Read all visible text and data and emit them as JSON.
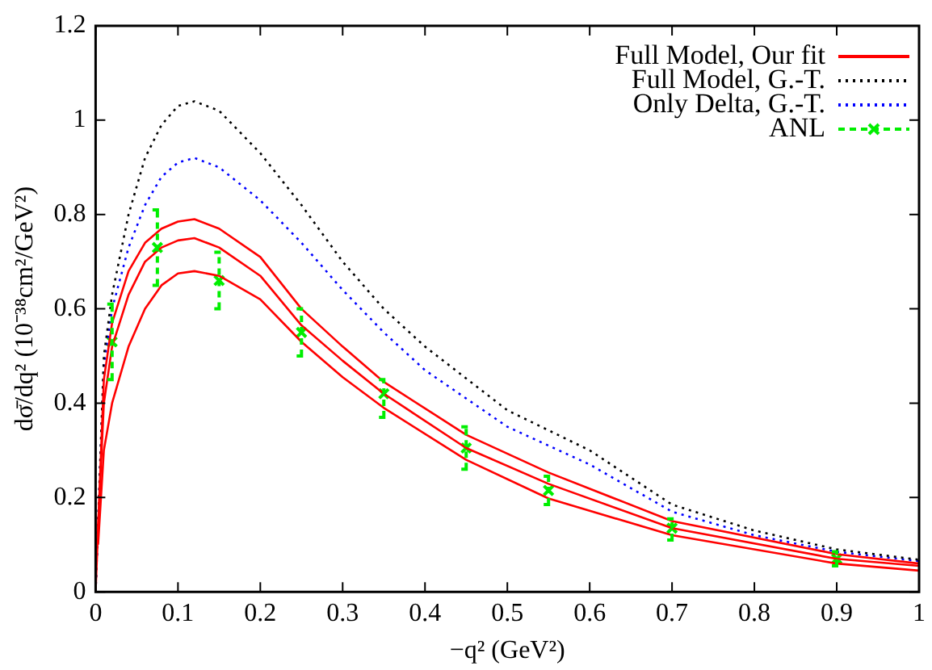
{
  "chart_data": {
    "type": "line",
    "xlabel": "−q² (GeV²)",
    "ylabel": "dσ̄/dq² (10⁻³⁸cm²/GeV²)",
    "xlim": [
      0,
      1
    ],
    "xticks": [
      0,
      0.1,
      0.2,
      0.3,
      0.4,
      0.5,
      0.6,
      0.7,
      0.8,
      0.9,
      1
    ],
    "ylim": [
      0,
      1.2
    ],
    "yticks": [
      0,
      0.2,
      0.4,
      0.6,
      0.8,
      1,
      1.2
    ],
    "grid": false,
    "legend": "top right",
    "series": [
      {
        "name": "Full Model, Our fit",
        "color": "#ff0000",
        "line_style": "solid",
        "marker": "none",
        "x": [
          0,
          0.01,
          0.02,
          0.04,
          0.06,
          0.08,
          0.1,
          0.12,
          0.15,
          0.2,
          0.25,
          0.3,
          0.35,
          0.45,
          0.55,
          0.7,
          0.9,
          1
        ],
        "values": [
          0,
          0.45,
          0.57,
          0.68,
          0.74,
          0.77,
          0.785,
          0.79,
          0.77,
          0.71,
          0.6,
          0.52,
          0.445,
          0.333,
          0.253,
          0.15,
          0.08,
          0.06
        ]
      },
      {
        "color": "#ff0000",
        "line_style": "solid",
        "marker": "none",
        "x": [
          0.002,
          0.01,
          0.02,
          0.04,
          0.06,
          0.08,
          0.1,
          0.12,
          0.15,
          0.2,
          0.25,
          0.3,
          0.35,
          0.45,
          0.55,
          0.7,
          0.9,
          1
        ],
        "values": [
          0.1,
          0.4,
          0.52,
          0.63,
          0.7,
          0.73,
          0.745,
          0.75,
          0.73,
          0.67,
          0.565,
          0.49,
          0.42,
          0.305,
          0.229,
          0.135,
          0.07,
          0.055
        ]
      },
      {
        "color": "#ff0000",
        "line_style": "solid",
        "marker": "none",
        "x": [
          0.003,
          0.01,
          0.02,
          0.04,
          0.06,
          0.08,
          0.1,
          0.12,
          0.15,
          0.2,
          0.25,
          0.3,
          0.35,
          0.45,
          0.55,
          0.7,
          0.9,
          1
        ],
        "values": [
          0.1,
          0.3,
          0.4,
          0.52,
          0.6,
          0.65,
          0.675,
          0.68,
          0.67,
          0.62,
          0.53,
          0.455,
          0.39,
          0.28,
          0.198,
          0.12,
          0.06,
          0.045
        ]
      },
      {
        "name": "Full Model, G.-T.",
        "color": "#000000",
        "line_style": "dotted",
        "marker": "none",
        "x": [
          0,
          0.01,
          0.02,
          0.04,
          0.06,
          0.08,
          0.1,
          0.12,
          0.15,
          0.2,
          0.25,
          0.3,
          0.35,
          0.4,
          0.5,
          0.6,
          0.7,
          0.8,
          0.9,
          1
        ],
        "values": [
          0,
          0.5,
          0.63,
          0.8,
          0.92,
          0.99,
          1.03,
          1.04,
          1.02,
          0.93,
          0.82,
          0.7,
          0.6,
          0.52,
          0.385,
          0.3,
          0.185,
          0.13,
          0.09,
          0.068
        ]
      },
      {
        "name": "Only Delta, G.-T.",
        "color": "#0000ff",
        "line_style": "dotted",
        "marker": "none",
        "x": [
          0,
          0.01,
          0.02,
          0.04,
          0.06,
          0.08,
          0.1,
          0.12,
          0.15,
          0.2,
          0.25,
          0.3,
          0.35,
          0.4,
          0.5,
          0.6,
          0.7,
          0.8,
          0.9,
          1
        ],
        "values": [
          0,
          0.48,
          0.6,
          0.73,
          0.82,
          0.88,
          0.91,
          0.92,
          0.9,
          0.83,
          0.74,
          0.64,
          0.55,
          0.47,
          0.35,
          0.27,
          0.17,
          0.12,
          0.085,
          0.065
        ]
      },
      {
        "name": "ANL",
        "type": "scatter",
        "color": "#00ee00",
        "line_style": "dashed",
        "marker": "cross",
        "x": [
          0.02,
          0.075,
          0.15,
          0.25,
          0.35,
          0.45,
          0.55,
          0.7,
          0.9
        ],
        "values": [
          0.53,
          0.73,
          0.66,
          0.55,
          0.42,
          0.305,
          0.215,
          0.135,
          0.07
        ],
        "errors": [
          [
            0.45,
            0.61
          ],
          [
            0.65,
            0.81
          ],
          [
            0.6,
            0.72
          ],
          [
            0.5,
            0.6
          ],
          [
            0.37,
            0.45
          ],
          [
            0.26,
            0.35
          ],
          [
            0.185,
            0.245
          ],
          [
            0.11,
            0.155
          ],
          [
            0.055,
            0.085
          ]
        ]
      }
    ]
  }
}
